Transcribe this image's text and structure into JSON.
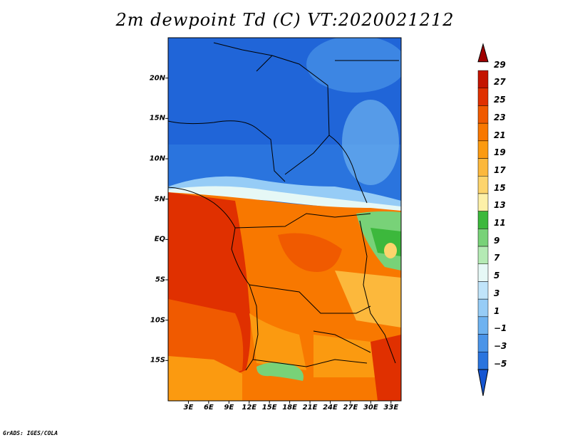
{
  "title": "2m dewpoint Td (C) VT:2020021212",
  "credit": "GrADS: IGES/COLA",
  "map": {
    "lat_labels": [
      {
        "text": "20N",
        "lat": 20
      },
      {
        "text": "15N",
        "lat": 15
      },
      {
        "text": "10N",
        "lat": 10
      },
      {
        "text": "5N",
        "lat": 5
      },
      {
        "text": "EQ",
        "lat": 0
      },
      {
        "text": "5S",
        "lat": -5
      },
      {
        "text": "10S",
        "lat": -10
      },
      {
        "text": "15S",
        "lat": -15
      }
    ],
    "lon_labels": [
      {
        "text": "3E",
        "lon": 3
      },
      {
        "text": "6E",
        "lon": 6
      },
      {
        "text": "9E",
        "lon": 9
      },
      {
        "text": "12E",
        "lon": 12
      },
      {
        "text": "15E",
        "lon": 15
      },
      {
        "text": "18E",
        "lon": 18
      },
      {
        "text": "21E",
        "lon": 21
      },
      {
        "text": "24E",
        "lon": 24
      },
      {
        "text": "27E",
        "lon": 27
      },
      {
        "text": "30E",
        "lon": 30
      },
      {
        "text": "33E",
        "lon": 33
      }
    ],
    "lon_range": [
      0,
      34.5
    ],
    "lat_range": [
      -20,
      25
    ]
  },
  "colorbar": {
    "labels": [
      "29",
      "27",
      "25",
      "23",
      "21",
      "19",
      "17",
      "15",
      "13",
      "11",
      "9",
      "7",
      "5",
      "3",
      "1",
      "−1",
      "−3",
      "−5"
    ],
    "colors": [
      "#a00000",
      "#c41400",
      "#e03000",
      "#f05a00",
      "#f87800",
      "#fb9a10",
      "#fcb83c",
      "#fdd46c",
      "#fdf0a8",
      "#3cb83c",
      "#78d278",
      "#b4eab4",
      "#e6f8f6",
      "#c0e4fa",
      "#96ccf6",
      "#6eb2f0",
      "#4a94e8",
      "#2a74de",
      "#1656d2"
    ]
  }
}
